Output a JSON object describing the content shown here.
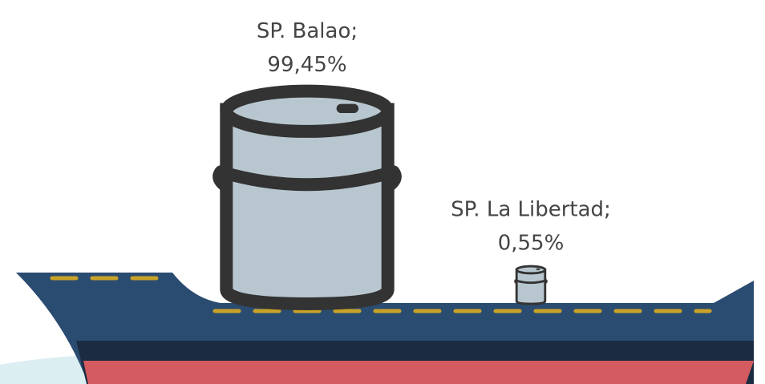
{
  "chart_data": {
    "type": "pictogram",
    "categories": [
      "SP. Balao",
      "SP. La Libertad"
    ],
    "label_separator": ";",
    "values": [
      99.45,
      0.55
    ],
    "value_labels": [
      "99,45%",
      "0,55%"
    ],
    "color": "#b8c7cf"
  }
}
